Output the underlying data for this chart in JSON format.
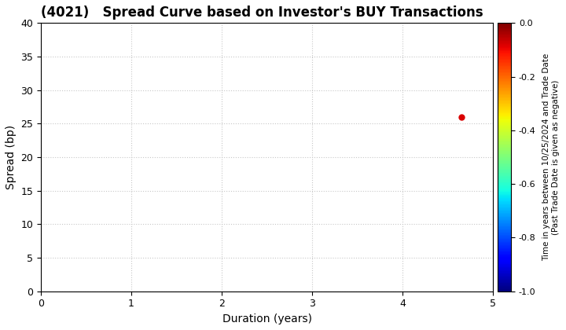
{
  "title": "(4021)   Spread Curve based on Investor's BUY Transactions",
  "xlabel": "Duration (years)",
  "ylabel": "Spread (bp)",
  "xlim": [
    0,
    5
  ],
  "ylim": [
    0,
    40
  ],
  "xticks": [
    0,
    1,
    2,
    3,
    4,
    5
  ],
  "yticks": [
    0,
    5,
    10,
    15,
    20,
    25,
    30,
    35,
    40
  ],
  "point_x": 4.65,
  "point_y": 26.0,
  "point_color_value": -0.08,
  "cmap": "jet",
  "cbar_vmin": -1.0,
  "cbar_vmax": 0.0,
  "cbar_ticks": [
    0.0,
    -0.2,
    -0.4,
    -0.6,
    -0.8,
    -1.0
  ],
  "cbar_label_line1": "Time in years between 10/25/2024 and Trade Date",
  "cbar_label_line2": "(Past Trade Date is given as negative)",
  "grid_color": "#c8c8c8",
  "bg_color": "#ffffff",
  "title_fontsize": 12,
  "axis_label_fontsize": 10,
  "tick_fontsize": 9,
  "point_size": 25
}
